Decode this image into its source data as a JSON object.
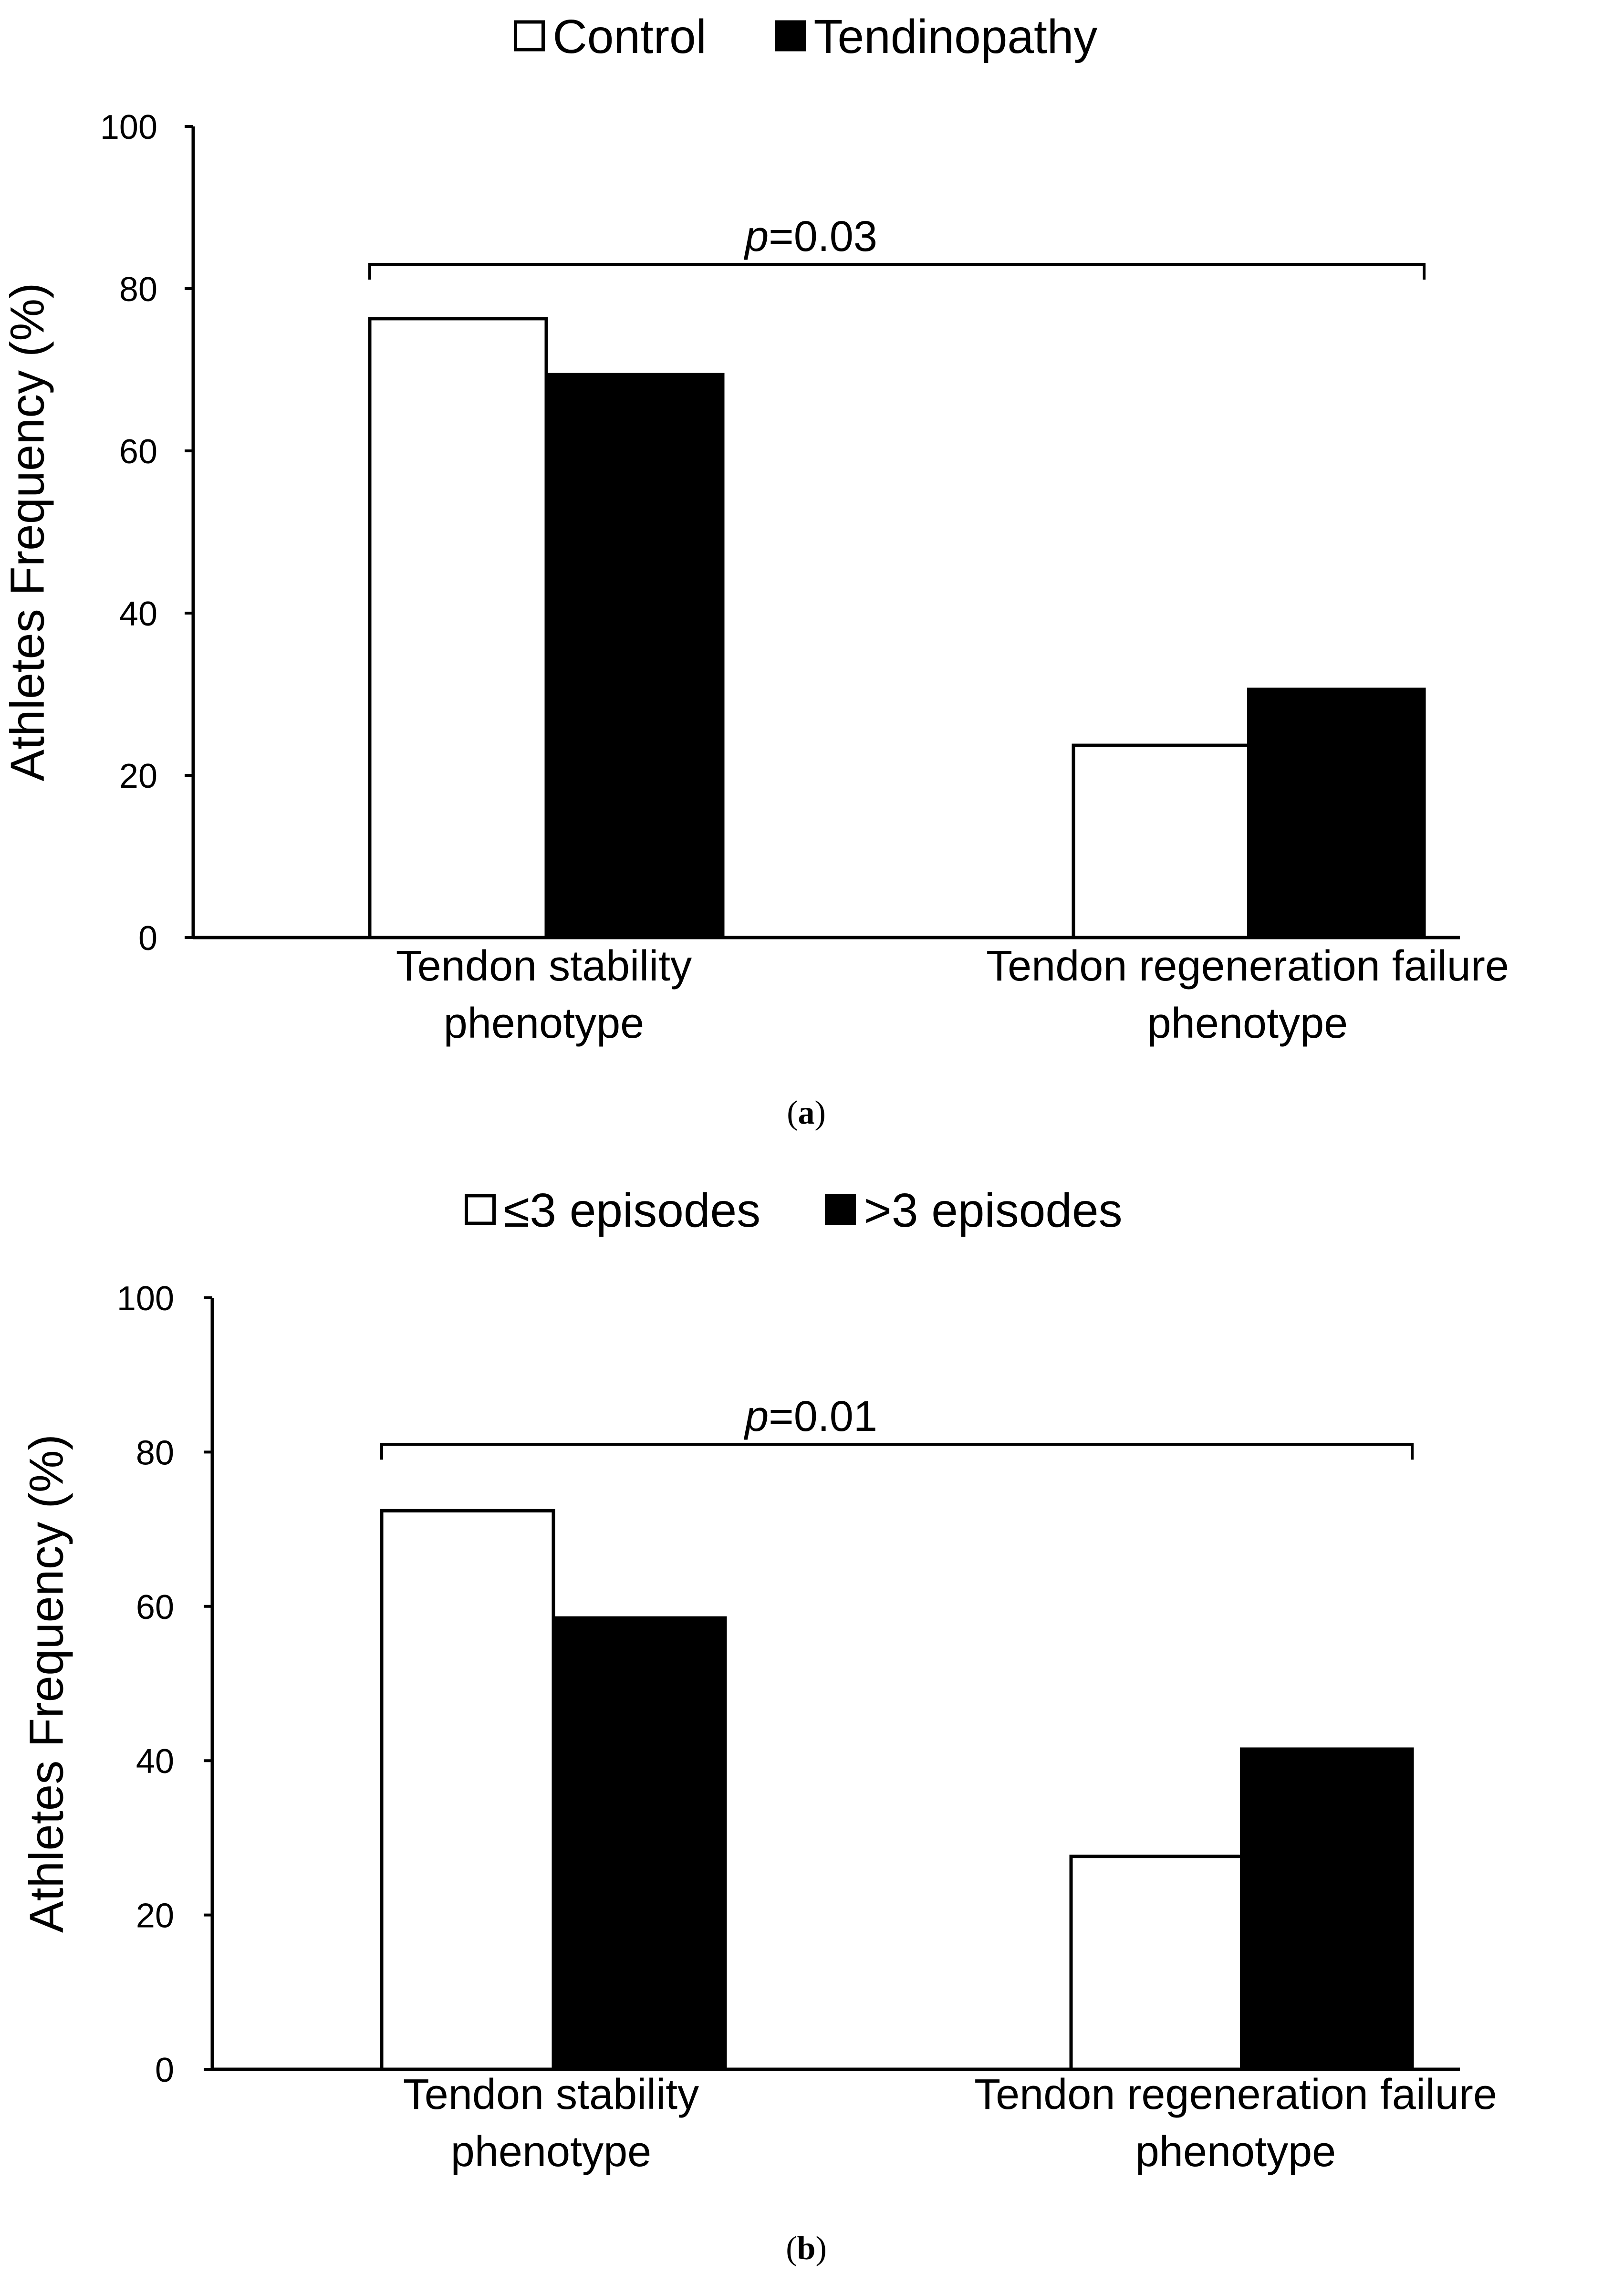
{
  "chart_data": [
    {
      "type": "bar",
      "panel_label": "a",
      "categories": [
        [
          "Tendon stability",
          "phenotype"
        ],
        [
          "Tendon regeneration failure",
          "phenotype"
        ]
      ],
      "series": [
        {
          "name": "Control",
          "fill": "#ffffff",
          "values": [
            76.3,
            23.7
          ]
        },
        {
          "name": "Tendinopathy",
          "fill": "#000000",
          "values": [
            69.4,
            30.6
          ]
        }
      ],
      "ylabel": "Athletes Frequency (%)",
      "xlabel": "",
      "ylim": [
        0,
        100
      ],
      "yticks": [
        "0",
        "20",
        "40",
        "60",
        "80",
        "100"
      ],
      "ytick_values": [
        0,
        20,
        40,
        60,
        80,
        100
      ],
      "legend_position": "top-center",
      "annotation": {
        "italic": "p",
        "text": "=0.03",
        "bracket_level": 83
      },
      "grid": false
    },
    {
      "type": "bar",
      "panel_label": "b",
      "categories": [
        [
          "Tendon stability",
          "phenotype"
        ],
        [
          "Tendon regeneration failure",
          "phenotype"
        ]
      ],
      "series": [
        {
          "name": "≤3 episodes",
          "fill": "#ffffff",
          "values": [
            72.4,
            27.6
          ]
        },
        {
          "name": ">3 episodes",
          "fill": "#000000",
          "values": [
            58.5,
            41.5
          ]
        }
      ],
      "ylabel": "Athletes Frequency (%)",
      "xlabel": "",
      "ylim": [
        0,
        100
      ],
      "yticks": [
        "0",
        "20",
        "40",
        "60",
        "80",
        "100"
      ],
      "ytick_values": [
        0,
        20,
        40,
        60,
        80,
        100
      ],
      "legend_position": "top-center",
      "annotation": {
        "italic": "p",
        "text": "=0.01",
        "bracket_level": 81
      },
      "grid": false
    }
  ]
}
